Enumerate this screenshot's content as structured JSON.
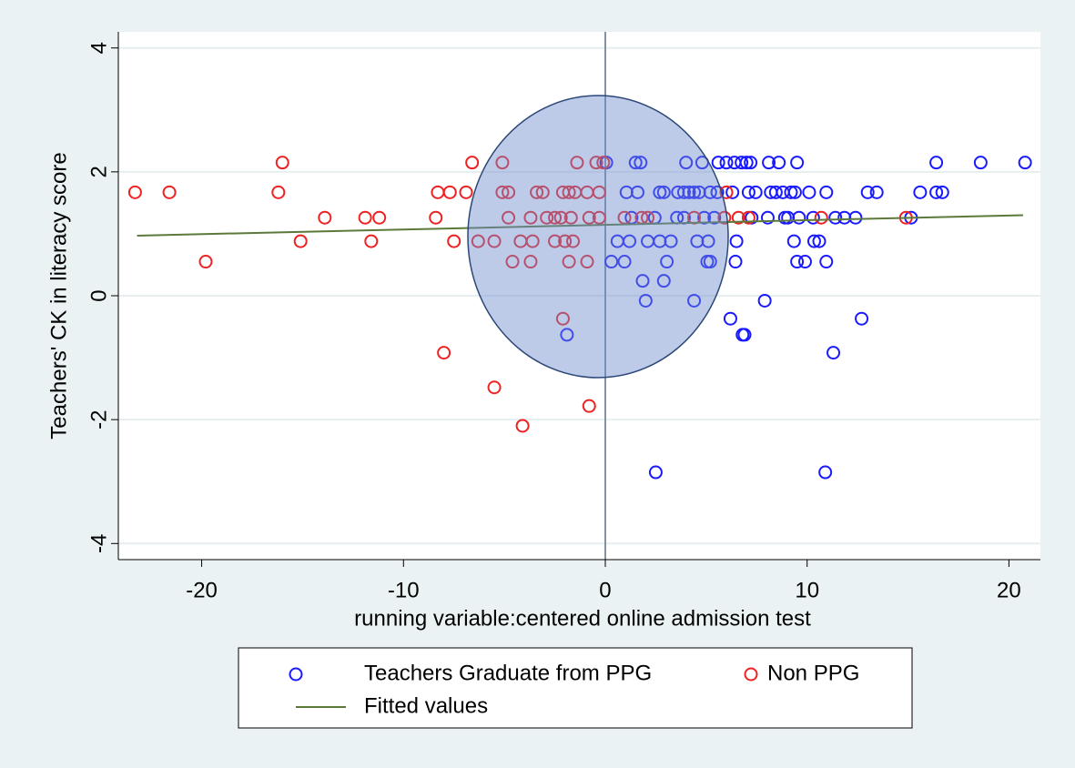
{
  "chart_data": {
    "type": "scatter",
    "xlabel": "running variable:centered online admission test",
    "ylabel": "Teachers' CK in literacy score",
    "xlim": [
      -24.13,
      21.56
    ],
    "ylim": [
      -4.26,
      4.26
    ],
    "xticks": [
      -20,
      -10,
      0,
      10,
      20
    ],
    "yticks": [
      4,
      2,
      0,
      -2,
      -4
    ],
    "grid": true,
    "xline": 0,
    "series": [
      {
        "name": "Teachers Graduate from PPG",
        "color": "#1a1aff",
        "kind": "markers",
        "x": [
          -1.9,
          0.05,
          0.3,
          0.6,
          0.95,
          1.05,
          1.2,
          1.3,
          1.5,
          1.6,
          1.75,
          1.85,
          2.0,
          2.1,
          2.5,
          2.45,
          2.7,
          2.7,
          2.9,
          2.9,
          3.05,
          3.25,
          3.55,
          3.6,
          3.9,
          4.0,
          3.9,
          4.15,
          4.4,
          4.4,
          4.55,
          4.65,
          4.8,
          4.9,
          5.05,
          5.1,
          5.2,
          5.2,
          5.4,
          5.55,
          5.6,
          6.0,
          6.2,
          6.3,
          6.4,
          6.45,
          6.5,
          6.75,
          6.8,
          6.9,
          7.0,
          7.1,
          7.2,
          7.25,
          7.45,
          7.9,
          8.05,
          8.1,
          8.2,
          8.45,
          8.6,
          8.8,
          8.9,
          9.05,
          9.2,
          9.35,
          9.4,
          9.5,
          9.5,
          9.6,
          9.9,
          10.1,
          10.3,
          10.35,
          10.6,
          10.9,
          10.95,
          10.95,
          11.3,
          11.4,
          11.85,
          12.4,
          12.7,
          13.0,
          13.45,
          15.15,
          15.6,
          16.4,
          16.4,
          16.7,
          18.6,
          20.8
        ],
        "values": [
          -0.63,
          2.15,
          0.55,
          0.88,
          0.55,
          1.67,
          0.88,
          1.26,
          2.15,
          1.67,
          2.15,
          0.24,
          -0.08,
          0.88,
          -2.85,
          1.26,
          1.67,
          0.88,
          1.67,
          0.24,
          0.55,
          0.88,
          1.26,
          1.67,
          1.67,
          2.15,
          1.26,
          1.67,
          1.67,
          -0.08,
          0.88,
          1.67,
          2.15,
          1.26,
          0.55,
          0.88,
          1.67,
          0.55,
          1.26,
          1.67,
          2.15,
          2.15,
          -0.37,
          1.67,
          2.15,
          0.55,
          0.88,
          2.15,
          -0.63,
          -0.63,
          2.15,
          1.67,
          2.15,
          1.26,
          1.67,
          -0.08,
          1.26,
          2.15,
          1.67,
          1.67,
          2.15,
          1.67,
          1.26,
          1.26,
          1.67,
          0.88,
          1.67,
          2.15,
          0.55,
          1.26,
          0.55,
          1.67,
          1.26,
          0.88,
          0.88,
          -2.85,
          1.67,
          0.55,
          -0.92,
          1.26,
          1.26,
          1.26,
          -0.37,
          1.67,
          1.67,
          1.26,
          1.67,
          2.15,
          1.67,
          1.67,
          2.15,
          2.15
        ]
      },
      {
        "name": "Non PPG",
        "color": "#ee2222",
        "kind": "markers",
        "x": [
          -23.3,
          -21.6,
          -19.8,
          -16.2,
          -16.0,
          -15.1,
          -13.9,
          -11.9,
          -11.6,
          -11.2,
          -8.4,
          -8.3,
          -8.0,
          -7.7,
          -7.5,
          -6.9,
          -6.6,
          -6.3,
          -5.5,
          -5.5,
          -5.1,
          -5.1,
          -4.8,
          -4.8,
          -4.6,
          -4.1,
          -4.2,
          -3.7,
          -3.6,
          -3.7,
          -3.4,
          -3.1,
          -2.9,
          -2.5,
          -2.5,
          -2.2,
          -2.1,
          -2.1,
          -2.0,
          -1.8,
          -1.8,
          -1.7,
          -1.6,
          -1.5,
          -1.4,
          -0.9,
          -0.8,
          -0.9,
          -0.8,
          -0.45,
          -0.3,
          -0.3,
          -0.1,
          0.95,
          1.8,
          2.1,
          4.4,
          5.9,
          6.0,
          6.6,
          7.1,
          10.7,
          14.9
        ],
        "values": [
          1.67,
          1.67,
          0.55,
          1.67,
          2.15,
          0.88,
          1.26,
          1.26,
          0.88,
          1.26,
          1.26,
          1.67,
          -0.92,
          1.67,
          0.88,
          1.67,
          2.15,
          0.88,
          -1.48,
          0.88,
          2.15,
          1.67,
          1.67,
          1.26,
          0.55,
          -2.1,
          0.88,
          1.26,
          0.88,
          0.55,
          1.67,
          1.67,
          1.26,
          1.26,
          0.88,
          1.26,
          1.67,
          -0.37,
          0.88,
          1.67,
          0.55,
          1.26,
          0.88,
          1.67,
          2.15,
          1.67,
          1.26,
          0.55,
          -1.78,
          2.15,
          1.67,
          1.26,
          2.15,
          1.26,
          1.26,
          1.26,
          1.26,
          1.26,
          1.67,
          1.26,
          1.26,
          1.26,
          1.26
        ]
      },
      {
        "name": "Fitted values",
        "color": "#5b7a3a",
        "kind": "line",
        "x": [
          -23.2,
          20.7
        ],
        "values": [
          0.97,
          1.3
        ]
      }
    ]
  }
}
